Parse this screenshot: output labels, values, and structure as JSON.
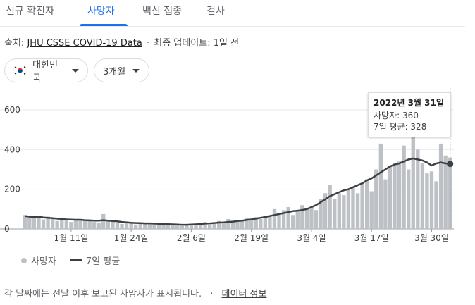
{
  "tabs": [
    {
      "label": "신규 확진자",
      "active": false
    },
    {
      "label": "사망자",
      "active": true
    },
    {
      "label": "백신 접종",
      "active": false
    },
    {
      "label": "검사",
      "active": false
    }
  ],
  "source": {
    "prefix": "출처:",
    "link": "JHU CSSE COVID-19 Data",
    "separator": "·",
    "updated": "최종 업데이트: 1일 전"
  },
  "filters": {
    "country": "대한민국",
    "period": "3개월"
  },
  "tooltip": {
    "date": "2022년 3월 31일",
    "deaths_line": "사망자: 360",
    "avg_line": "7일 평균: 328"
  },
  "legend": {
    "bars": "사망자",
    "line": "7일 평균"
  },
  "footer": {
    "note": "각 날짜에는 전날 이후 보고된 사망자가 표시됩니다.",
    "separator": "·",
    "link": "데이터 정보"
  },
  "colors": {
    "accent": "#1a73e8",
    "bar": "#bdc1c6",
    "line": "#3c4043"
  },
  "chart_data": {
    "type": "bar",
    "title": "",
    "xlabel": "",
    "ylabel": "",
    "ylim": [
      0,
      600
    ],
    "yticks": [
      0,
      200,
      400,
      600
    ],
    "x_tick_labels": [
      {
        "index": 10,
        "label": "1월 11일"
      },
      {
        "index": 23,
        "label": "1월 24일"
      },
      {
        "index": 36,
        "label": "2월 6일"
      },
      {
        "index": 49,
        "label": "2월 19일"
      },
      {
        "index": 62,
        "label": "3월 4일"
      },
      {
        "index": 75,
        "label": "3월 17일"
      },
      {
        "index": 88,
        "label": "3월 30일"
      }
    ],
    "grid": true,
    "legend_position": "bottom-left",
    "series": [
      {
        "name": "사망자",
        "kind": "bar",
        "values": [
          70,
          60,
          55,
          65,
          48,
          62,
          50,
          40,
          45,
          52,
          35,
          48,
          50,
          40,
          45,
          35,
          32,
          75,
          40,
          45,
          30,
          25,
          38,
          30,
          22,
          30,
          28,
          32,
          25,
          30,
          22,
          20,
          25,
          18,
          15,
          22,
          20,
          30,
          25,
          35,
          22,
          25,
          40,
          30,
          50,
          35,
          45,
          40,
          55,
          45,
          60,
          50,
          65,
          70,
          100,
          80,
          95,
          110,
          70,
          90,
          120,
          100,
          110,
          95,
          150,
          180,
          220,
          150,
          180,
          170,
          200,
          210,
          180,
          230,
          250,
          190,
          300,
          430,
          250,
          320,
          330,
          340,
          420,
          300,
          470,
          400,
          330,
          280,
          290,
          240,
          430,
          370,
          360
        ]
      },
      {
        "name": "7일 평균",
        "kind": "line",
        "values": [
          65,
          62,
          60,
          62,
          58,
          56,
          54,
          52,
          50,
          48,
          47,
          46,
          46,
          44,
          43,
          42,
          42,
          44,
          42,
          40,
          38,
          35,
          33,
          31,
          30,
          29,
          28,
          28,
          27,
          26,
          25,
          24,
          23,
          22,
          21,
          21,
          22,
          23,
          25,
          27,
          28,
          30,
          32,
          33,
          35,
          37,
          40,
          42,
          45,
          48,
          52,
          56,
          60,
          65,
          70,
          75,
          80,
          85,
          90,
          92,
          95,
          100,
          110,
          120,
          135,
          150,
          165,
          175,
          185,
          195,
          200,
          210,
          220,
          230,
          245,
          255,
          270,
          285,
          300,
          315,
          325,
          330,
          340,
          350,
          355,
          350,
          345,
          335,
          320,
          330,
          335,
          330,
          328
        ]
      }
    ]
  }
}
